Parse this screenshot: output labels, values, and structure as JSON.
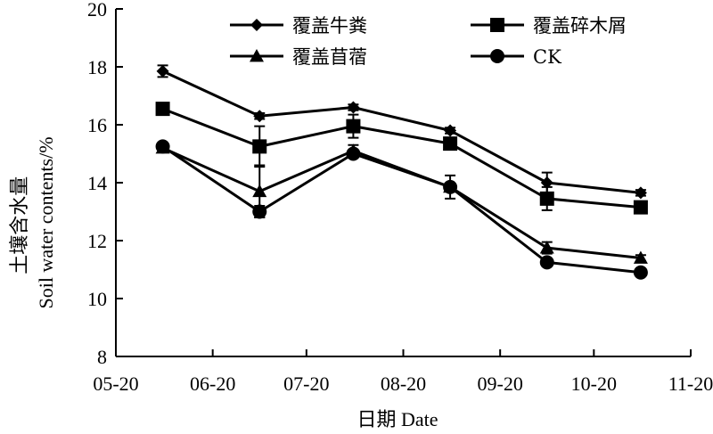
{
  "chart_data": {
    "type": "line",
    "title": "",
    "xlabel": "日期 Date",
    "ylabel_cn": "土壤含水量",
    "ylabel_en": "Soil water contents/%",
    "ylim": [
      8,
      20
    ],
    "yticks": [
      8,
      10,
      12,
      14,
      16,
      18,
      20
    ],
    "xticks": [
      "05-20",
      "06-20",
      "07-20",
      "08-20",
      "09-20",
      "10-20",
      "11-20"
    ],
    "x": [
      "06-04",
      "07-05",
      "08-04",
      "09-04",
      "10-05",
      "11-04"
    ],
    "grid": false,
    "legend_position": "top",
    "series": [
      {
        "name": "覆盖牛粪",
        "marker": "diamond",
        "values": [
          17.85,
          16.3,
          16.6,
          15.8,
          14.0,
          13.65
        ],
        "errors": [
          0.2,
          0.1,
          0.1,
          0.1,
          0.35,
          0.1
        ]
      },
      {
        "name": "覆盖碎木屑",
        "marker": "square",
        "values": [
          16.55,
          15.25,
          15.95,
          15.35,
          13.45,
          13.15
        ],
        "errors": [
          0.15,
          0.7,
          0.4,
          0.1,
          0.4,
          0.15
        ]
      },
      {
        "name": "覆盖苜蓿",
        "marker": "triangle",
        "values": [
          15.2,
          13.7,
          15.1,
          13.85,
          11.75,
          11.4
        ],
        "errors": [
          0.1,
          0.9,
          0.2,
          0.1,
          0.2,
          0.1
        ]
      },
      {
        "name": "CK",
        "marker": "circle",
        "values": [
          15.25,
          13.0,
          15.0,
          13.85,
          11.25,
          10.9
        ],
        "errors": [
          0.1,
          0.2,
          0.1,
          0.4,
          0.1,
          0.1
        ]
      }
    ]
  }
}
